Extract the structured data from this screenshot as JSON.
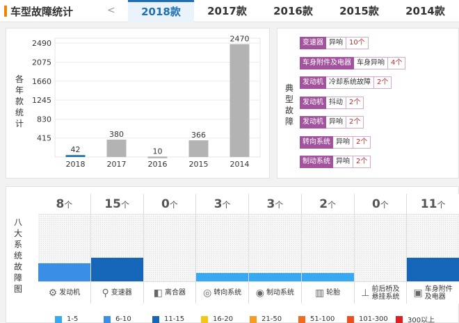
{
  "header": {
    "title": "车型故障统计",
    "prev": "<",
    "tabs": [
      "2018款",
      "2017款",
      "2016款",
      "2015款",
      "2014款"
    ],
    "active_tab": 0
  },
  "yearly_chart": {
    "ylabel": "各年款统计",
    "chart_data": {
      "type": "bar",
      "categories": [
        "2018",
        "2017",
        "2016",
        "2015",
        "2014"
      ],
      "values": [
        42,
        380,
        10,
        366,
        2470
      ],
      "ylim": [
        0,
        2600
      ],
      "yticks": [
        415,
        830,
        1245,
        1660,
        2075,
        2490
      ],
      "highlight_color": "#1f6fb4",
      "bar_color": "#b3b3b3"
    }
  },
  "typical_faults": {
    "label": "典型故障",
    "items": [
      {
        "system": "变速器",
        "fault": "异响",
        "count": "10个"
      },
      {
        "system": "车身附件及电器",
        "fault": "车身异响",
        "count": "4个"
      },
      {
        "system": "发动机",
        "fault": "冷却系统故障",
        "count": "2个"
      },
      {
        "system": "发动机",
        "fault": "抖动",
        "count": "2个"
      },
      {
        "system": "发动机",
        "fault": "异响",
        "count": "2个"
      },
      {
        "system": "转向系统",
        "fault": "异响",
        "count": "2个"
      },
      {
        "system": "制动系统",
        "fault": "异响",
        "count": "2个"
      }
    ]
  },
  "eight_systems": {
    "label": "八大系统故障图",
    "unit": "个",
    "columns": [
      {
        "name": "发动机",
        "count": "8",
        "level": 0.27,
        "color": "#3a8ee6",
        "icon": "engine-icon",
        "glyph": "⚙"
      },
      {
        "name": "变速器",
        "count": "15",
        "level": 0.36,
        "color": "#1565b8",
        "icon": "gearshift-icon",
        "glyph": "⚲"
      },
      {
        "name": "离合器",
        "count": "0",
        "level": 0,
        "color": "#3a8ee6",
        "icon": "clutch-icon",
        "glyph": "◧"
      },
      {
        "name": "转向系统",
        "count": "3",
        "level": 0.13,
        "color": "#36a9f2",
        "icon": "steering-wheel-icon",
        "glyph": "◎"
      },
      {
        "name": "制动系统",
        "count": "3",
        "level": 0.13,
        "color": "#36a9f2",
        "icon": "brake-disc-icon",
        "glyph": "◉"
      },
      {
        "name": "轮胎",
        "count": "2",
        "level": 0.13,
        "color": "#36a9f2",
        "icon": "tire-icon",
        "glyph": "▥"
      },
      {
        "name": "前后桥及悬挂系统",
        "name_lines": [
          "前后桥及",
          "悬挂系统"
        ],
        "count": "0",
        "level": 0,
        "color": "#36a9f2",
        "icon": "suspension-icon",
        "glyph": "⊥"
      },
      {
        "name": "车身附件及电器",
        "name_lines": [
          "车身附件",
          "及电器"
        ],
        "count": "11",
        "level": 0.36,
        "color": "#1565b8",
        "icon": "battery-icon",
        "glyph": "▣"
      }
    ],
    "legend": [
      {
        "label": "1-5",
        "color": "#36a9f2"
      },
      {
        "label": "6-10",
        "color": "#3a8ee6"
      },
      {
        "label": "11-15",
        "color": "#1565b8"
      },
      {
        "label": "16-20",
        "color": "#f5c518"
      },
      {
        "label": "21-50",
        "color": "#f59a23"
      },
      {
        "label": "51-100",
        "color": "#f26b1d"
      },
      {
        "label": "101-300",
        "color": "#ee4d1c"
      },
      {
        "label": "300以上",
        "color": "#e02020"
      }
    ]
  }
}
